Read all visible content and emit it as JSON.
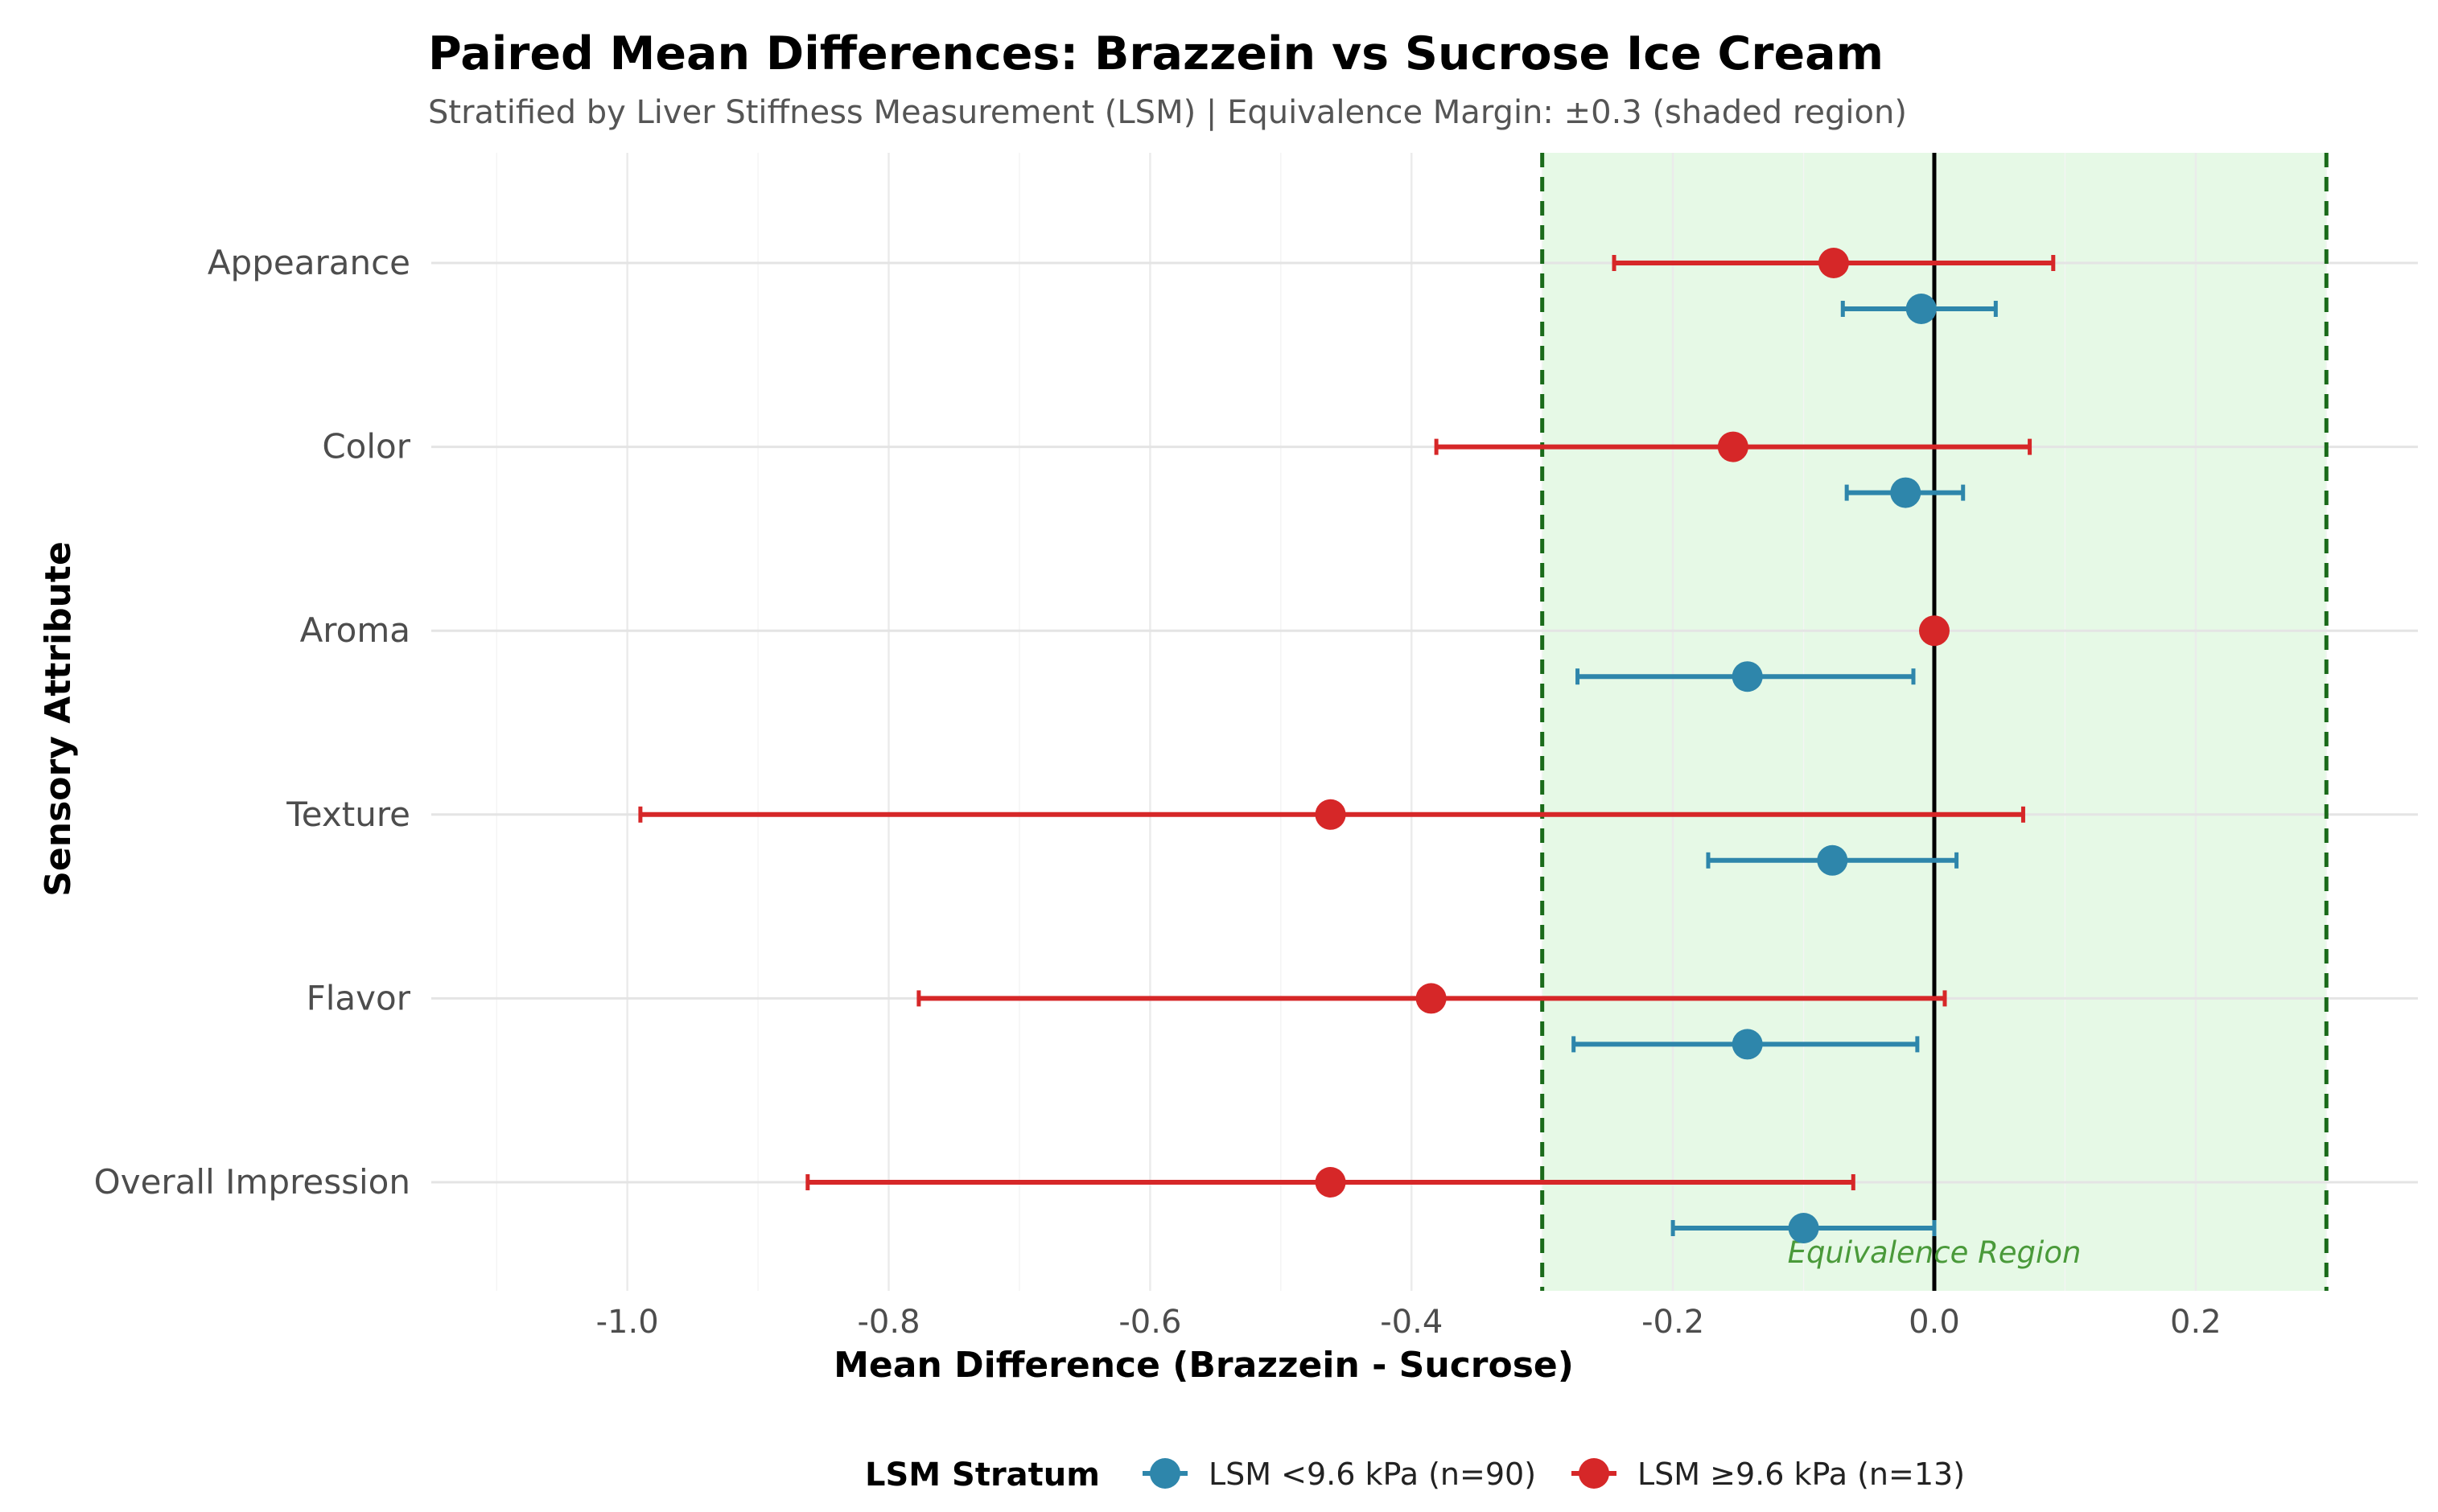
{
  "chart_data": {
    "type": "forest",
    "title": "Paired Mean Differences: Brazzein vs Sucrose Ice Cream",
    "subtitle": "Stratified by Liver Stiffness Measurement (LSM) | Equivalence Margin: ±0.3 (shaded region)",
    "xlabel": "Mean Difference (Brazzein - Sucrose)",
    "ylabel": "Sensory Attribute",
    "xlim": [
      -1.15,
      0.37
    ],
    "xticks": [
      -1.0,
      -0.8,
      -0.6,
      -0.4,
      -0.2,
      0.0,
      0.2
    ],
    "xtick_labels": [
      "-1.0",
      "-0.8",
      "-0.6",
      "-0.4",
      "-0.2",
      "0.0",
      "0.2"
    ],
    "categories": [
      "Appearance",
      "Color",
      "Aroma",
      "Texture",
      "Flavor",
      "Overall Impression"
    ],
    "equivalence": {
      "margin": 0.3,
      "label": "Equivalence Region",
      "fill_color": "#e6f9e6",
      "line_color": "#1a6b1a",
      "label_color": "#4a9a3a"
    },
    "reference_line": 0.0,
    "legend": {
      "title": "LSM Stratum",
      "position": "bottom"
    },
    "series": [
      {
        "name": "LSM <9.6 kPa (n=90)",
        "color": "#2e86ab",
        "means": [
          -0.01,
          -0.022,
          -0.143,
          -0.078,
          -0.143,
          -0.1
        ],
        "lower": [
          -0.07,
          -0.067,
          -0.273,
          -0.173,
          -0.276,
          -0.2
        ],
        "upper": [
          0.047,
          0.022,
          -0.016,
          0.017,
          -0.013,
          0.0
        ]
      },
      {
        "name": "LSM ≥9.6 kPa (n=13)",
        "color": "#d62728",
        "means": [
          -0.077,
          -0.154,
          0.0,
          -0.462,
          -0.385,
          -0.462
        ],
        "lower": [
          -0.245,
          -0.381,
          0.0,
          -0.99,
          -0.777,
          -0.862
        ],
        "upper": [
          0.091,
          0.073,
          0.0,
          0.068,
          0.008,
          -0.062
        ]
      }
    ]
  }
}
